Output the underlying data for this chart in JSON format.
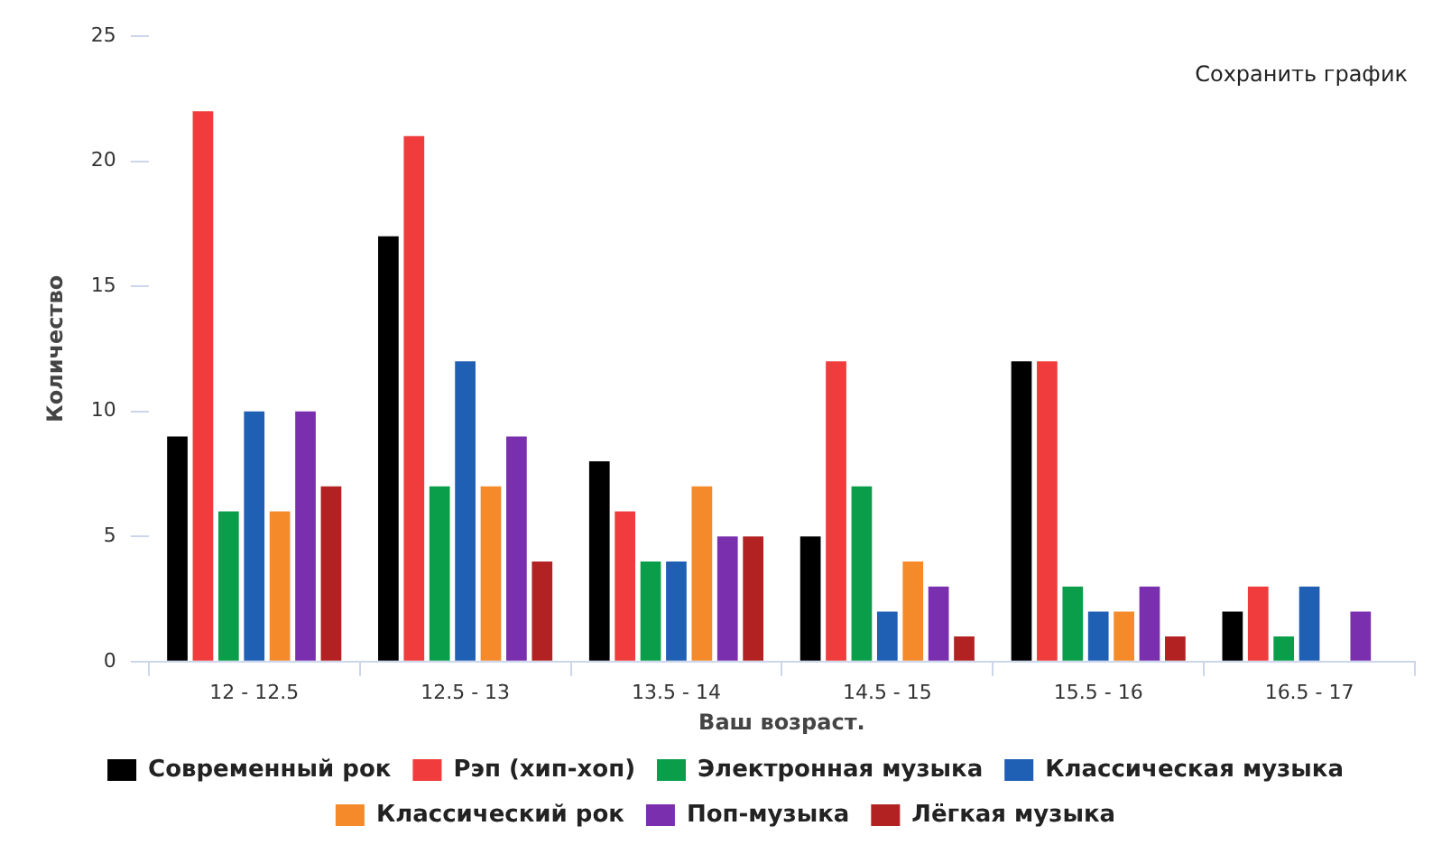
{
  "chart_data": {
    "type": "bar",
    "xlabel": "Ваш возраст.",
    "ylabel": "Количество",
    "annotations": [
      "Сохранить график"
    ],
    "categories": [
      "12 - 12.5",
      "12.5 - 13",
      "13.5 - 14",
      "14.5 - 15",
      "15.5 - 16",
      "16.5 - 17"
    ],
    "series": [
      {
        "name": "Современный рок",
        "color": "#000000",
        "values": [
          9,
          17,
          8,
          5,
          12,
          2
        ]
      },
      {
        "name": "Рэп (хип-хоп)",
        "color": "#f03c3c",
        "values": [
          22,
          21,
          6,
          12,
          12,
          3
        ]
      },
      {
        "name": "Электронная музыка",
        "color": "#0a9e4a",
        "values": [
          6,
          7,
          4,
          7,
          3,
          1
        ]
      },
      {
        "name": "Классическая музыка",
        "color": "#1f5fb4",
        "values": [
          10,
          12,
          4,
          2,
          2,
          3
        ]
      },
      {
        "name": "Классический рок",
        "color": "#f58a2a",
        "values": [
          6,
          7,
          7,
          4,
          2,
          0
        ]
      },
      {
        "name": "Поп-музыка",
        "color": "#7a2fae",
        "values": [
          10,
          9,
          5,
          3,
          3,
          2
        ]
      },
      {
        "name": "Лёгкая музыка",
        "color": "#b22222",
        "values": [
          7,
          4,
          5,
          1,
          1,
          0
        ]
      }
    ],
    "ylim": [
      0,
      25
    ],
    "yticks": [
      0,
      5,
      10,
      15,
      20,
      25
    ],
    "grid": false,
    "legend": "bottom"
  }
}
